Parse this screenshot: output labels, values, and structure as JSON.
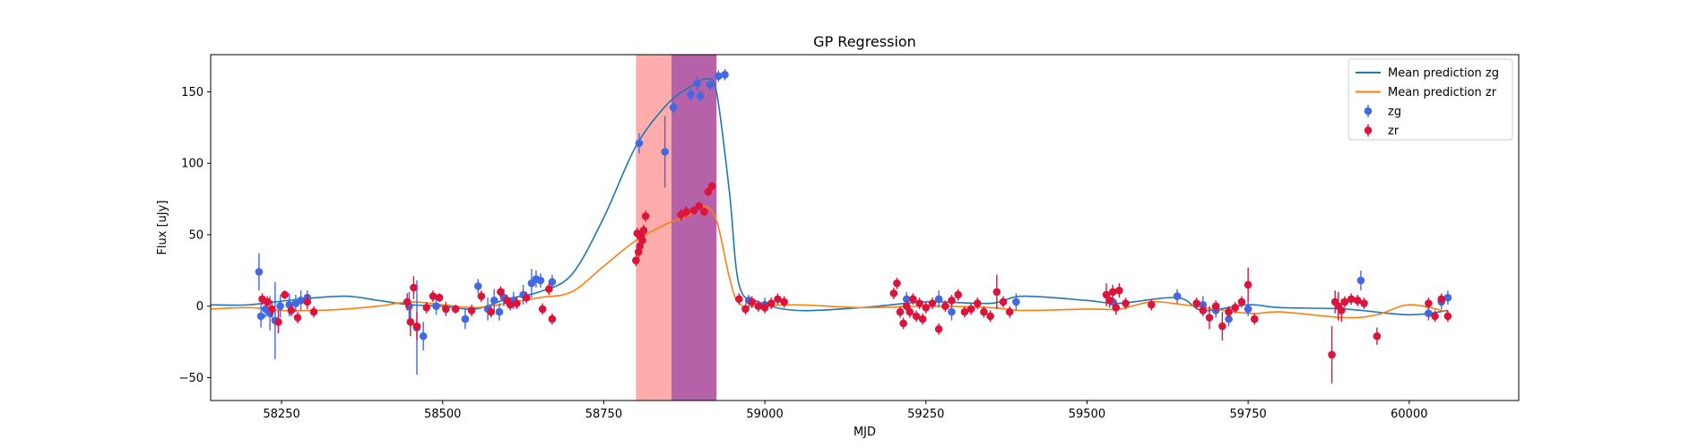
{
  "chart_data": {
    "type": "scatter",
    "title": "GP Regression",
    "xlabel": "MJD",
    "ylabel": "Flux [uJy]",
    "xlim": [
      58140,
      60170
    ],
    "ylim": [
      -66,
      176
    ],
    "xticks": [
      58250,
      58500,
      58750,
      59000,
      59250,
      59500,
      59750,
      60000
    ],
    "yticks": [
      -50,
      0,
      50,
      100,
      150
    ],
    "grid": false,
    "legend_position": "top-right",
    "shaded_regions": [
      {
        "x": [
          58800,
          58855
        ],
        "color": "#ff7f7f",
        "opacity": 0.65
      },
      {
        "x": [
          58855,
          58925
        ],
        "color": "#a8479a",
        "opacity": 0.85
      }
    ],
    "series": [
      {
        "name": "Mean prediction zg",
        "kind": "line",
        "color": "#1f77b4",
        "x": [
          58140,
          58200,
          58280,
          58350,
          58400,
          58450,
          58500,
          58550,
          58600,
          58650,
          58700,
          58750,
          58800,
          58850,
          58890,
          58910,
          58925,
          58945,
          58960,
          58990,
          59050,
          59150,
          59250,
          59350,
          59400,
          59500,
          59550,
          59640,
          59680,
          59750,
          59800,
          59900,
          60000,
          60060
        ],
        "y": [
          1,
          1,
          5,
          7,
          4,
          1,
          0,
          -2,
          5,
          10,
          22,
          62,
          112,
          142,
          155,
          159,
          150,
          80,
          15,
          3,
          -3,
          -1,
          3,
          2,
          7,
          4,
          2,
          6,
          -3,
          1,
          -1,
          -2,
          -6,
          -3
        ]
      },
      {
        "name": "Mean prediction zr",
        "kind": "line",
        "color": "#ff7f0e",
        "x": [
          58140,
          58200,
          58250,
          58300,
          58350,
          58400,
          58450,
          58500,
          58550,
          58600,
          58650,
          58700,
          58750,
          58800,
          58850,
          58880,
          58905,
          58925,
          58945,
          58960,
          58990,
          59050,
          59150,
          59250,
          59350,
          59400,
          59500,
          59550,
          59600,
          59650,
          59750,
          59800,
          59900,
          59950,
          60000,
          60060
        ],
        "y": [
          -2,
          -1,
          -3,
          -3,
          -2,
          0,
          3,
          1,
          -1,
          2,
          6,
          10,
          28,
          46,
          58,
          63,
          70,
          60,
          20,
          2,
          0,
          1,
          -1,
          0,
          -1,
          -3,
          -2,
          -2,
          3,
          1,
          -5,
          -4,
          -8,
          -6,
          1,
          -4
        ]
      },
      {
        "name": "zg",
        "kind": "errorbar",
        "color": "#4169e1",
        "x": [
          58215,
          58218,
          58225,
          58232,
          58240,
          58248,
          58262,
          58272,
          58280,
          58290,
          58448,
          58460,
          58470,
          58490,
          58535,
          58555,
          58570,
          58580,
          58588,
          58595,
          58610,
          58625,
          58638,
          58645,
          58652,
          58670,
          58805,
          58845,
          58858,
          58885,
          58895,
          58900,
          58915,
          58928,
          58938,
          58975,
          59000,
          59220,
          59270,
          59290,
          59390,
          59540,
          59640,
          59680,
          59700,
          59720,
          59750,
          59925,
          60030,
          60050,
          60060
        ],
        "y": [
          24,
          -7,
          -2,
          -5,
          -10,
          0,
          1,
          2,
          4,
          6,
          0,
          -15,
          -21,
          0,
          -9,
          14,
          -2,
          4,
          -4,
          6,
          4,
          8,
          16,
          19,
          18,
          17,
          114,
          108,
          139,
          148,
          156,
          147,
          155,
          161,
          162,
          4,
          1,
          5,
          5,
          -4,
          3,
          3,
          7,
          1,
          -3,
          -9,
          -2,
          18,
          -5,
          3,
          6
        ],
        "err": [
          13,
          8,
          6,
          12,
          27,
          8,
          8,
          6,
          7,
          5,
          10,
          33,
          10,
          6,
          7,
          5,
          8,
          8,
          6,
          6,
          6,
          7,
          10,
          6,
          5,
          5,
          7,
          25,
          4,
          4,
          5,
          4,
          4,
          4,
          4,
          4,
          5,
          5,
          6,
          6,
          6,
          5,
          5,
          6,
          5,
          5,
          5,
          7,
          5,
          5,
          5
        ]
      },
      {
        "name": "zr",
        "kind": "errorbar",
        "color": "#dc143c",
        "x": [
          58220,
          58228,
          58235,
          58245,
          58255,
          58265,
          58275,
          58290,
          58300,
          58445,
          58450,
          58455,
          58460,
          58475,
          58485,
          58495,
          58505,
          58520,
          58545,
          58560,
          58575,
          58590,
          58600,
          58605,
          58615,
          58630,
          58655,
          58665,
          58670,
          58800,
          58802,
          58804,
          58806,
          58808,
          58810,
          58812,
          58815,
          58870,
          58878,
          58890,
          58898,
          58906,
          58912,
          58918,
          58960,
          58970,
          58980,
          58990,
          59000,
          59010,
          59020,
          59030,
          59200,
          59205,
          59210,
          59215,
          59220,
          59225,
          59230,
          59235,
          59240,
          59245,
          59250,
          59260,
          59270,
          59280,
          59290,
          59300,
          59310,
          59320,
          59330,
          59340,
          59350,
          59360,
          59370,
          59380,
          59530,
          59535,
          59540,
          59545,
          59550,
          59560,
          59600,
          59670,
          59680,
          59690,
          59700,
          59710,
          59720,
          59730,
          59740,
          59750,
          59760,
          59880,
          59885,
          59890,
          59895,
          59900,
          59910,
          59920,
          59930,
          59950,
          60030,
          60040,
          60050,
          60060
        ],
        "y": [
          5,
          3,
          -2,
          -11,
          8,
          -3,
          -8,
          3,
          -4,
          3,
          -11,
          13,
          -14,
          -1,
          7,
          6,
          -2,
          -2,
          -3,
          7,
          -4,
          10,
          4,
          1,
          2,
          6,
          -2,
          12,
          -9,
          32,
          51,
          38,
          42,
          49,
          46,
          53,
          63,
          64,
          66,
          67,
          70,
          66,
          80,
          84,
          5,
          -2,
          3,
          0,
          -1,
          2,
          5,
          3,
          9,
          16,
          -4,
          -12,
          0,
          -4,
          5,
          -7,
          2,
          -9,
          -1,
          2,
          -16,
          0,
          4,
          8,
          -4,
          -2,
          2,
          -4,
          -7,
          10,
          3,
          -4,
          8,
          4,
          10,
          -1,
          11,
          2,
          1,
          2,
          -3,
          -8,
          0,
          -14,
          -4,
          -1,
          3,
          15,
          -9,
          -34,
          3,
          0,
          -3,
          3,
          5,
          4,
          2,
          -21,
          2,
          -7,
          5,
          -7
        ],
        "err": [
          4,
          4,
          6,
          8,
          3,
          4,
          4,
          5,
          4,
          6,
          10,
          8,
          10,
          4,
          4,
          3,
          5,
          3,
          4,
          4,
          4,
          4,
          4,
          4,
          4,
          4,
          4,
          4,
          4,
          4,
          4,
          4,
          4,
          4,
          4,
          4,
          4,
          4,
          4,
          3,
          3,
          3,
          3,
          3,
          4,
          4,
          4,
          4,
          4,
          4,
          4,
          4,
          4,
          4,
          4,
          4,
          4,
          4,
          4,
          4,
          4,
          4,
          4,
          4,
          4,
          4,
          4,
          4,
          4,
          4,
          4,
          4,
          4,
          12,
          4,
          4,
          8,
          5,
          5,
          5,
          5,
          4,
          4,
          4,
          4,
          8,
          4,
          10,
          4,
          4,
          4,
          12,
          4,
          20,
          8,
          10,
          8,
          4,
          4,
          4,
          4,
          6,
          4,
          4,
          4,
          4
        ]
      }
    ]
  }
}
